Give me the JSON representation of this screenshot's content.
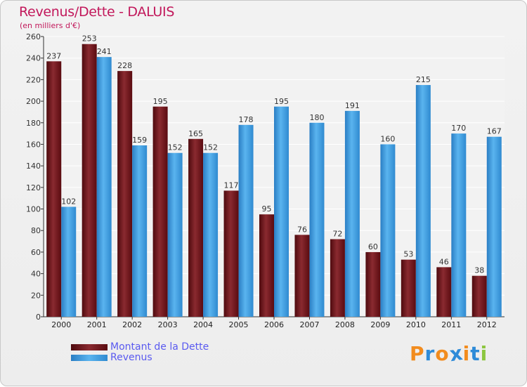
{
  "chart_data": {
    "type": "bar",
    "title": "Revenus/Dette - DALUIS",
    "subtitle": "(en milliers d'€)",
    "categories": [
      "2000",
      "2001",
      "2002",
      "2003",
      "2004",
      "2005",
      "2006",
      "2007",
      "2008",
      "2009",
      "2010",
      "2011",
      "2012"
    ],
    "series": [
      {
        "name": "Montant de la Dette",
        "color": "#6b0f14",
        "values": [
          237,
          253,
          228,
          195,
          165,
          117,
          95,
          76,
          72,
          60,
          53,
          46,
          38
        ]
      },
      {
        "name": "Revenus",
        "color": "#3b9ee0",
        "values": [
          102,
          241,
          159,
          152,
          152,
          178,
          195,
          180,
          191,
          160,
          215,
          170,
          167
        ]
      }
    ],
    "ylim": [
      0,
      260
    ],
    "yticks": [
      0,
      20,
      40,
      60,
      80,
      100,
      120,
      140,
      160,
      180,
      200,
      220,
      240,
      260
    ],
    "grid": true,
    "legend": "bottom-left"
  },
  "logo": {
    "text": "Proxiti",
    "letters": [
      {
        "ch": "P",
        "color": "#f28c1e"
      },
      {
        "ch": "r",
        "color": "#2e8bd8"
      },
      {
        "ch": "o",
        "color": "#f28c1e"
      },
      {
        "ch": "x",
        "color": "#2e8bd8"
      },
      {
        "ch": "i",
        "color": "#f28c1e"
      },
      {
        "ch": "t",
        "color": "#2e8bd8"
      },
      {
        "ch": "i",
        "color": "#8cc63f"
      }
    ]
  }
}
